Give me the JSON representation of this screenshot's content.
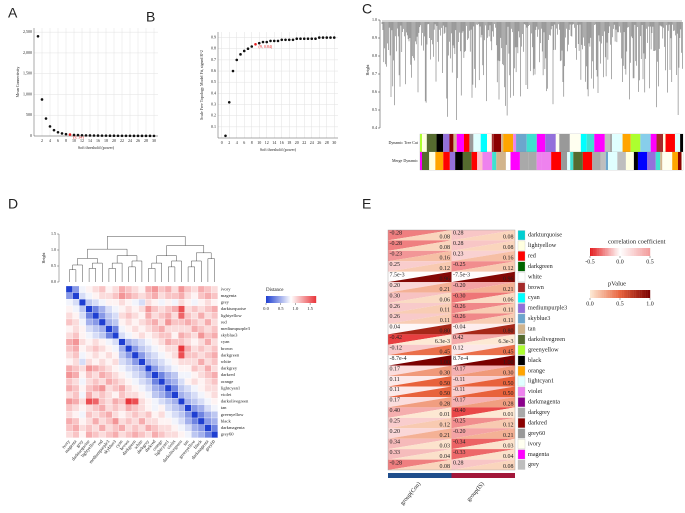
{
  "chart_data": [
    {
      "type": "scatter",
      "label": "A",
      "x_label": "Soft threshold (power)",
      "y_label": "Mean Connectivity",
      "x": [
        1,
        2,
        3,
        4,
        5,
        6,
        7,
        8,
        9,
        10,
        11,
        12,
        13,
        14,
        15,
        16,
        17,
        18,
        19,
        20,
        21,
        22,
        23,
        24,
        25,
        26,
        27,
        28,
        29,
        30
      ],
      "values": [
        2400,
        880,
        420,
        230,
        140,
        90,
        62,
        45,
        34,
        27,
        22,
        18,
        15,
        13,
        11,
        10,
        9,
        8,
        7,
        6.5,
        6,
        5.5,
        5,
        4.7,
        4.4,
        4.1,
        3.9,
        3.7,
        3.5,
        3.3
      ],
      "color": "#111111",
      "xlim": [
        0,
        31
      ],
      "ylim": [
        0,
        2600
      ],
      "xticks": [
        2,
        4,
        6,
        8,
        10,
        12,
        14,
        16,
        18,
        20,
        22,
        24,
        26,
        28,
        30
      ],
      "yticks": [
        0,
        500,
        {
          "value": 1000,
          "label": "1,000"
        },
        {
          "value": 1500,
          "label": "1,500"
        },
        {
          "value": 2000,
          "label": "2,000"
        },
        {
          "value": 2500,
          "label": "2,500"
        }
      ],
      "grid": true,
      "annotation": {
        "x": 9,
        "text": "(9, 34)",
        "color": "#e41a1c"
      }
    },
    {
      "type": "scatter",
      "label": "B",
      "x_label": "Soft threshold (power)",
      "y_label": "Scale Free Topology Model Fit, signed R^2",
      "x": [
        1,
        2,
        3,
        4,
        5,
        6,
        7,
        8,
        9,
        10,
        11,
        12,
        13,
        14,
        15,
        16,
        17,
        18,
        19,
        20,
        21,
        22,
        23,
        24,
        25,
        26,
        27,
        28,
        29,
        30
      ],
      "values": [
        0.02,
        0.32,
        0.6,
        0.7,
        0.75,
        0.78,
        0.8,
        0.82,
        0.84,
        0.85,
        0.86,
        0.86,
        0.87,
        0.87,
        0.87,
        0.88,
        0.88,
        0.88,
        0.88,
        0.89,
        0.89,
        0.89,
        0.89,
        0.89,
        0.89,
        0.9,
        0.9,
        0.9,
        0.9,
        0.9
      ],
      "color": "#111111",
      "xlim": [
        -1,
        31
      ],
      "ylim": [
        0,
        0.95
      ],
      "xticks": [
        0,
        2,
        4,
        6,
        8,
        10,
        12,
        14,
        16,
        18,
        20,
        22,
        24,
        26,
        28,
        30
      ],
      "yticks": [
        0.1,
        0.2,
        0.3,
        0.4,
        0.5,
        0.6,
        0.7,
        0.8,
        0.9
      ],
      "grid": true,
      "annotation": {
        "x": 9,
        "text": "(9, 0.84)",
        "color": "#e41a1c"
      }
    },
    {
      "type": "dendrogram",
      "label": "C",
      "y_label": "Height",
      "ylim": [
        0.4,
        1.0
      ],
      "yticks": [
        {
          "value": 1,
          "label": "1.0"
        },
        0.9,
        0.8,
        0.7,
        0.6,
        0.5,
        0.4
      ],
      "tracks": [
        "Dynamic Tree Cut",
        "Merge Dynamic"
      ],
      "palette": [
        "#40e0d0",
        "#ffffe0",
        "#ff0000",
        "#006400",
        "#ffffff",
        "#a52a2a",
        "#00ffff",
        "#9370db",
        "#6ca6cd",
        "#d2b48c",
        "#556b2f",
        "#adff2f",
        "#000000",
        "#ffa500",
        "#e0ffff",
        "#ee82ee",
        "#8b008b",
        "#a9a9a9",
        "#8b0000",
        "#999999",
        "#fffff0",
        "#ff00ff",
        "#bebebe",
        "#0000ff",
        "#ffc0cb",
        "#87ceeb"
      ]
    },
    {
      "type": "heatmap",
      "label": "D",
      "y_label": "Height",
      "legend_title": "Distance",
      "dendro_ticks": [
        {
          "value": 1.5,
          "label": "1.5"
        },
        {
          "value": 1,
          "label": "1.0"
        },
        0.5,
        {
          "value": 0,
          "label": "0.0"
        }
      ],
      "categories": [
        "ivory",
        "magenta",
        "grey",
        "darkturquoise",
        "lightyellow",
        "red",
        "mediumpurple3",
        "skyblue3",
        "cyan",
        "brown",
        "darkgreen",
        "white",
        "darkgrey",
        "darkred",
        "orange",
        "lightcyan1",
        "violet",
        "darkolivegreen",
        "tan",
        "greenyellow",
        "black",
        "darkmagenta",
        "grey60"
      ],
      "values": [
        [
          0
        ],
        [
          0.4,
          0
        ],
        [
          0.8,
          0.7,
          0
        ],
        [
          0.9,
          0.8,
          0.6,
          0
        ],
        [
          1.0,
          0.9,
          0.7,
          0.3,
          0
        ],
        [
          1.1,
          1.0,
          0.8,
          0.5,
          0.4,
          0
        ],
        [
          0.9,
          1.0,
          0.9,
          0.7,
          0.6,
          0.5,
          0
        ],
        [
          1.0,
          1.1,
          0.9,
          0.8,
          0.7,
          0.6,
          0.3,
          0
        ],
        [
          1.2,
          1.3,
          1.0,
          0.9,
          1.0,
          0.9,
          0.8,
          0.7,
          0
        ],
        [
          1.1,
          1.2,
          0.9,
          1.0,
          1.1,
          1.0,
          0.9,
          0.8,
          0.5,
          0
        ],
        [
          1.0,
          1.1,
          0.8,
          0.9,
          1.0,
          0.9,
          1.0,
          0.9,
          0.6,
          0.4,
          0
        ],
        [
          0.9,
          1.0,
          0.7,
          1.0,
          0.9,
          1.0,
          0.9,
          1.0,
          0.7,
          0.6,
          0.4,
          0
        ],
        [
          1.2,
          1.1,
          1.0,
          1.3,
          1.2,
          1.1,
          1.0,
          0.9,
          0.8,
          0.7,
          0.6,
          0.5,
          0
        ],
        [
          1.3,
          1.2,
          0.9,
          1.1,
          1.0,
          1.2,
          1.1,
          1.0,
          0.9,
          0.8,
          0.7,
          0.6,
          0.4,
          0
        ],
        [
          1.1,
          1.0,
          0.8,
          1.0,
          1.1,
          1.0,
          1.2,
          1.1,
          1.0,
          0.9,
          0.8,
          0.7,
          0.6,
          0.3,
          0
        ],
        [
          1.2,
          1.1,
          0.9,
          1.1,
          1.2,
          1.3,
          1.0,
          1.1,
          1.2,
          1.0,
          0.9,
          0.8,
          0.7,
          0.5,
          0.4,
          0
        ],
        [
          1.0,
          1.1,
          0.8,
          1.2,
          1.0,
          1.1,
          1.0,
          0.9,
          1.1,
          1.0,
          1.0,
          0.9,
          0.8,
          0.6,
          0.5,
          0.3,
          0
        ],
        [
          1.3,
          1.2,
          1.0,
          1.6,
          1.5,
          1.1,
          1.0,
          1.2,
          1.1,
          1.7,
          1.6,
          1.0,
          0.9,
          0.8,
          0.7,
          0.6,
          0.5,
          0
        ],
        [
          1.1,
          1.0,
          0.9,
          1.0,
          1.1,
          1.2,
          1.0,
          1.1,
          1.0,
          1.2,
          1.1,
          1.0,
          0.9,
          0.8,
          0.9,
          0.7,
          0.6,
          0.5,
          0
        ],
        [
          1.0,
          0.9,
          0.8,
          1.1,
          1.0,
          1.1,
          1.2,
          1.0,
          0.9,
          1.0,
          1.1,
          1.0,
          1.1,
          0.9,
          1.0,
          0.8,
          0.7,
          0.6,
          0.4,
          0
        ],
        [
          1.2,
          1.1,
          0.9,
          1.0,
          1.2,
          1.0,
          1.1,
          1.3,
          1.0,
          1.1,
          1.0,
          1.2,
          1.0,
          1.0,
          0.9,
          0.9,
          0.8,
          0.7,
          0.5,
          0.3,
          0
        ],
        [
          1.1,
          1.2,
          1.0,
          1.1,
          1.0,
          1.2,
          1.0,
          1.1,
          1.2,
          1.0,
          1.1,
          1.0,
          1.2,
          1.1,
          1.0,
          1.0,
          0.9,
          0.8,
          0.7,
          0.5,
          0.4,
          0
        ],
        [
          1.0,
          1.1,
          0.9,
          1.2,
          1.1,
          1.0,
          1.1,
          1.2,
          1.0,
          1.1,
          1.2,
          1.1,
          1.0,
          1.2,
          1.1,
          1.0,
          1.0,
          0.9,
          0.8,
          0.6,
          0.5,
          0.3,
          0
        ]
      ],
      "zlim": [
        0,
        1.7
      ],
      "colorscale": [
        [
          0,
          "#1f3fd1"
        ],
        [
          0.85,
          "#ffffff"
        ],
        [
          1.7,
          "#e9363b"
        ]
      ],
      "zticks": [
        {
          "value": 0,
          "label": "0.0"
        },
        0.5,
        {
          "value": 1,
          "label": "1.0"
        },
        1.5
      ]
    },
    {
      "type": "correlation_heatmap",
      "label": "E",
      "categories": [
        "darkturquoise",
        "lightyellow",
        "red",
        "darkgreen",
        "white",
        "brown",
        "cyan",
        "mediumpurple3",
        "skyblue3",
        "tan",
        "darkolivegreen",
        "greenyellow",
        "black",
        "orange",
        "lightcyan1",
        "violet",
        "darkmagenta",
        "darkgrey",
        "darkred",
        "grey60",
        "ivory",
        "magenta",
        "grey"
      ],
      "row_colors": [
        "#00ced1",
        "#ffffe0",
        "#ff0000",
        "#006400",
        "#ffffff",
        "#a52a2a",
        "#00ffff",
        "#9370db",
        "#6ca6cd",
        "#d2b48c",
        "#556b2f",
        "#adff2f",
        "#000000",
        "#ffa500",
        "#e0ffff",
        "#ee82ee",
        "#8b008b",
        "#a9a9a9",
        "#8b0000",
        "#999999",
        "#fffff0",
        "#ff00ff",
        "#bebebe"
      ],
      "series": [
        {
          "name": "group(Con)",
          "color": "#1f4e8c",
          "r": [
            -0.28,
            -0.28,
            -0.23,
            0.25,
            0.0075,
            0.2,
            0.3,
            0.26,
            0.26,
            0.04,
            -0.42,
            -0.12,
            -0.00087,
            0.17,
            0.11,
            0.11,
            0.17,
            0.4,
            0.25,
            0.2,
            0.34,
            0.33,
            -0.28
          ],
          "r_labels": [
            "-0.28",
            "-0.28",
            "-0.23",
            "0.25",
            "7.5e-3",
            "0.20",
            "0.30",
            "0.26",
            "0.26",
            "0.04",
            "-0.42",
            "-0.12",
            "-8.7e-4",
            "0.17",
            "0.11",
            "0.11",
            "0.17",
            "0.40",
            "0.25",
            "0.20",
            "0.34",
            "0.33",
            "-0.28"
          ],
          "p": [
            0.08,
            0.08,
            0.16,
            0.12,
            0.96,
            0.21,
            0.06,
            0.11,
            0.11,
            0.8,
            0.0063,
            0.45,
            1,
            0.3,
            0.5,
            0.5,
            0.28,
            0.01,
            0.12,
            0.21,
            0.03,
            0.04,
            0.08
          ],
          "p_labels": [
            "0.08",
            "0.08",
            "0.16",
            "0.12",
            "0.96",
            "0.21",
            "0.06",
            "0.11",
            "0.11",
            "0.80",
            "6.3e-3",
            "0.45",
            "1.00",
            "0.30",
            "0.50",
            "0.50",
            "0.28",
            "0.01",
            "0.12",
            "0.21",
            "0.03",
            "0.04",
            "0.08"
          ]
        },
        {
          "name": "group(IS)",
          "color": "#a3173a",
          "r": [
            0.28,
            0.28,
            0.23,
            -0.25,
            -0.0075,
            -0.2,
            -0.3,
            -0.26,
            -0.26,
            -0.04,
            0.42,
            0.12,
            0.00087,
            -0.17,
            -0.11,
            -0.11,
            -0.17,
            -0.4,
            -0.25,
            -0.2,
            -0.34,
            -0.33,
            0.28
          ],
          "r_labels": [
            "0.28",
            "0.28",
            "0.23",
            "-0.25",
            "-7.5e-3",
            "-0.20",
            "-0.30",
            "-0.26",
            "-0.26",
            "-0.04",
            "0.42",
            "0.12",
            "8.7e-4",
            "-0.17",
            "-0.11",
            "-0.11",
            "-0.17",
            "-0.40",
            "-0.25",
            "-0.20",
            "-0.34",
            "-0.33",
            "0.28"
          ],
          "p": [
            0.08,
            0.08,
            0.16,
            0.12,
            0.96,
            0.21,
            0.06,
            0.11,
            0.11,
            0.8,
            0.0063,
            0.45,
            1,
            0.3,
            0.5,
            0.5,
            0.28,
            0.01,
            0.12,
            0.21,
            0.03,
            0.04,
            0.08
          ],
          "p_labels": [
            "0.08",
            "0.08",
            "0.16",
            "0.12",
            "0.96",
            "0.21",
            "0.06",
            "0.11",
            "0.11",
            "0.80",
            "6.3e-3",
            "0.45",
            "1.00",
            "0.30",
            "0.50",
            "0.50",
            "0.28",
            "0.01",
            "0.12",
            "0.21",
            "0.03",
            "0.04",
            "0.08"
          ]
        }
      ],
      "r_title": "correlation coefficient",
      "r_lim": [
        -0.5,
        0.5
      ],
      "r_scale": [
        [
          -0.5,
          "#e31a1c"
        ],
        [
          0,
          "#ffffff"
        ],
        [
          0.5,
          "#f29a9a"
        ]
      ],
      "r_ticks": [
        -0.5,
        {
          "value": 0,
          "label": "0.0"
        },
        0.5
      ],
      "p_title": "pValue",
      "p_lim": [
        0,
        1
      ],
      "p_scale": [
        [
          0,
          "#fdebd6"
        ],
        [
          0.5,
          "#e8623c"
        ],
        [
          1,
          "#7a0000"
        ]
      ],
      "p_ticks": [
        {
          "value": 0,
          "label": "0.0"
        },
        0.5,
        {
          "value": 1,
          "label": "1.0"
        }
      ]
    }
  ]
}
